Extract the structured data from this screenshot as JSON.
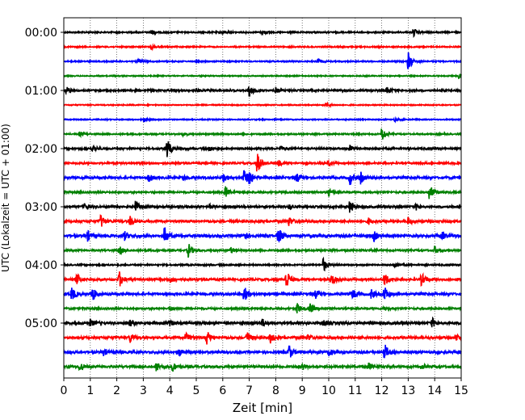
{
  "chart_data": {
    "type": "line",
    "subtype": "helicorder",
    "xlabel": "Zeit  [min]",
    "ylabel": "UTC (Lokalzeit = UTC + 01:00)",
    "xlim": [
      0,
      15
    ],
    "x_ticks": [
      0,
      1,
      2,
      3,
      4,
      5,
      6,
      7,
      8,
      9,
      10,
      11,
      12,
      13,
      14,
      15
    ],
    "y_ticks": [
      "00:00",
      "01:00",
      "02:00",
      "03:00",
      "04:00",
      "05:00"
    ],
    "grid": "vertical dotted",
    "trace_interval_minutes": 15,
    "trace_colors": [
      "#000000",
      "#ff0000",
      "#0000ff",
      "#008000"
    ],
    "traces": [
      {
        "start": "00:00",
        "color": "#000000",
        "noise": 0.8,
        "events": [
          [
            3.3,
            3
          ],
          [
            6,
            2
          ],
          [
            7.5,
            3
          ],
          [
            13.2,
            5
          ]
        ]
      },
      {
        "start": "00:15",
        "color": "#ff0000",
        "noise": 0.7,
        "events": [
          [
            3.3,
            3
          ]
        ]
      },
      {
        "start": "00:30",
        "color": "#0000ff",
        "noise": 0.7,
        "events": [
          [
            2.8,
            3
          ],
          [
            9.6,
            3
          ],
          [
            13,
            12
          ]
        ]
      },
      {
        "start": "00:45",
        "color": "#008000",
        "noise": 0.6,
        "events": [
          [
            14.9,
            4
          ]
        ]
      },
      {
        "start": "01:00",
        "color": "#000000",
        "noise": 1.0,
        "events": [
          [
            0.1,
            5
          ],
          [
            5,
            2
          ],
          [
            7,
            9
          ],
          [
            8,
            3
          ],
          [
            12.2,
            5
          ]
        ]
      },
      {
        "start": "01:15",
        "color": "#ff0000",
        "noise": 0.6,
        "events": [
          [
            9.9,
            3
          ]
        ]
      },
      {
        "start": "01:30",
        "color": "#0000ff",
        "noise": 0.6,
        "events": [
          [
            3,
            3
          ],
          [
            12.5,
            2
          ]
        ]
      },
      {
        "start": "01:45",
        "color": "#008000",
        "noise": 0.8,
        "events": [
          [
            0.6,
            3
          ],
          [
            4.5,
            2
          ],
          [
            12,
            10
          ]
        ]
      },
      {
        "start": "02:00",
        "color": "#000000",
        "noise": 1.0,
        "events": [
          [
            1.1,
            5
          ],
          [
            3.9,
            12
          ],
          [
            5.5,
            3
          ],
          [
            8.2,
            3
          ],
          [
            10.8,
            4
          ]
        ]
      },
      {
        "start": "02:15",
        "color": "#ff0000",
        "noise": 1.0,
        "events": [
          [
            7.3,
            14
          ],
          [
            8.1,
            4
          ],
          [
            10,
            3
          ]
        ]
      },
      {
        "start": "02:30",
        "color": "#0000ff",
        "noise": 1.3,
        "events": [
          [
            3.2,
            5
          ],
          [
            4.5,
            3
          ],
          [
            6,
            6
          ],
          [
            6.8,
            10
          ],
          [
            7,
            8
          ],
          [
            8.8,
            5
          ],
          [
            10.8,
            8
          ],
          [
            11.2,
            7
          ]
        ]
      },
      {
        "start": "02:45",
        "color": "#008000",
        "noise": 1.0,
        "events": [
          [
            6.1,
            8
          ],
          [
            10,
            4
          ],
          [
            13.8,
            10
          ]
        ]
      },
      {
        "start": "03:00",
        "color": "#000000",
        "noise": 1.2,
        "events": [
          [
            0.8,
            5
          ],
          [
            2.7,
            9
          ],
          [
            5.5,
            3
          ],
          [
            8.5,
            3
          ],
          [
            10.8,
            9
          ],
          [
            13.3,
            4
          ]
        ]
      },
      {
        "start": "03:15",
        "color": "#ff0000",
        "noise": 1.2,
        "events": [
          [
            1.4,
            9
          ],
          [
            2.5,
            6
          ],
          [
            8.5,
            6
          ],
          [
            11.5,
            4
          ],
          [
            13,
            5
          ]
        ]
      },
      {
        "start": "03:30",
        "color": "#0000ff",
        "noise": 1.5,
        "events": [
          [
            0.9,
            6
          ],
          [
            2.3,
            5
          ],
          [
            3.8,
            11
          ],
          [
            6.8,
            5
          ],
          [
            8.1,
            11
          ],
          [
            11.7,
            6
          ],
          [
            14.3,
            5
          ]
        ]
      },
      {
        "start": "03:45",
        "color": "#008000",
        "noise": 1.0,
        "events": [
          [
            2.1,
            5
          ],
          [
            4.7,
            9
          ],
          [
            6.3,
            4
          ],
          [
            14,
            5
          ]
        ]
      },
      {
        "start": "04:00",
        "color": "#000000",
        "noise": 0.8,
        "events": [
          [
            9.8,
            9
          ],
          [
            12.5,
            4
          ]
        ]
      },
      {
        "start": "04:15",
        "color": "#ff0000",
        "noise": 1.2,
        "events": [
          [
            0.5,
            7
          ],
          [
            2.1,
            10
          ],
          [
            4,
            3
          ],
          [
            8.4,
            13
          ],
          [
            10.1,
            7
          ],
          [
            12.1,
            9
          ],
          [
            13.5,
            8
          ]
        ]
      },
      {
        "start": "04:30",
        "color": "#0000ff",
        "noise": 1.3,
        "events": [
          [
            0.3,
            9
          ],
          [
            1.1,
            8
          ],
          [
            6.8,
            10
          ],
          [
            9.5,
            5
          ],
          [
            10.9,
            6
          ],
          [
            11.6,
            6
          ],
          [
            12.1,
            9
          ]
        ]
      },
      {
        "start": "04:45",
        "color": "#008000",
        "noise": 1.0,
        "events": [
          [
            4,
            3
          ],
          [
            8.8,
            7
          ],
          [
            9.3,
            6
          ],
          [
            12.1,
            3
          ]
        ]
      },
      {
        "start": "05:00",
        "color": "#000000",
        "noise": 1.4,
        "events": [
          [
            1,
            4
          ],
          [
            2.5,
            4
          ],
          [
            4,
            3
          ],
          [
            7.5,
            5
          ],
          [
            9.8,
            4
          ],
          [
            13.9,
            6
          ]
        ]
      },
      {
        "start": "05:15",
        "color": "#ff0000",
        "noise": 1.3,
        "events": [
          [
            2.5,
            6
          ],
          [
            4.6,
            8
          ],
          [
            5.4,
            8
          ],
          [
            6.9,
            8
          ],
          [
            7.8,
            6
          ],
          [
            9.2,
            4
          ],
          [
            14.8,
            5
          ]
        ]
      },
      {
        "start": "05:30",
        "color": "#0000ff",
        "noise": 1.3,
        "events": [
          [
            1.5,
            4
          ],
          [
            4.3,
            6
          ],
          [
            8.5,
            9
          ],
          [
            10,
            4
          ],
          [
            12.1,
            11
          ]
        ]
      },
      {
        "start": "05:45",
        "color": "#008000",
        "noise": 1.3,
        "events": [
          [
            0.6,
            6
          ],
          [
            3.5,
            6
          ],
          [
            4.1,
            6
          ],
          [
            9,
            4
          ],
          [
            11.5,
            4
          ],
          [
            13.5,
            3
          ]
        ]
      }
    ]
  }
}
